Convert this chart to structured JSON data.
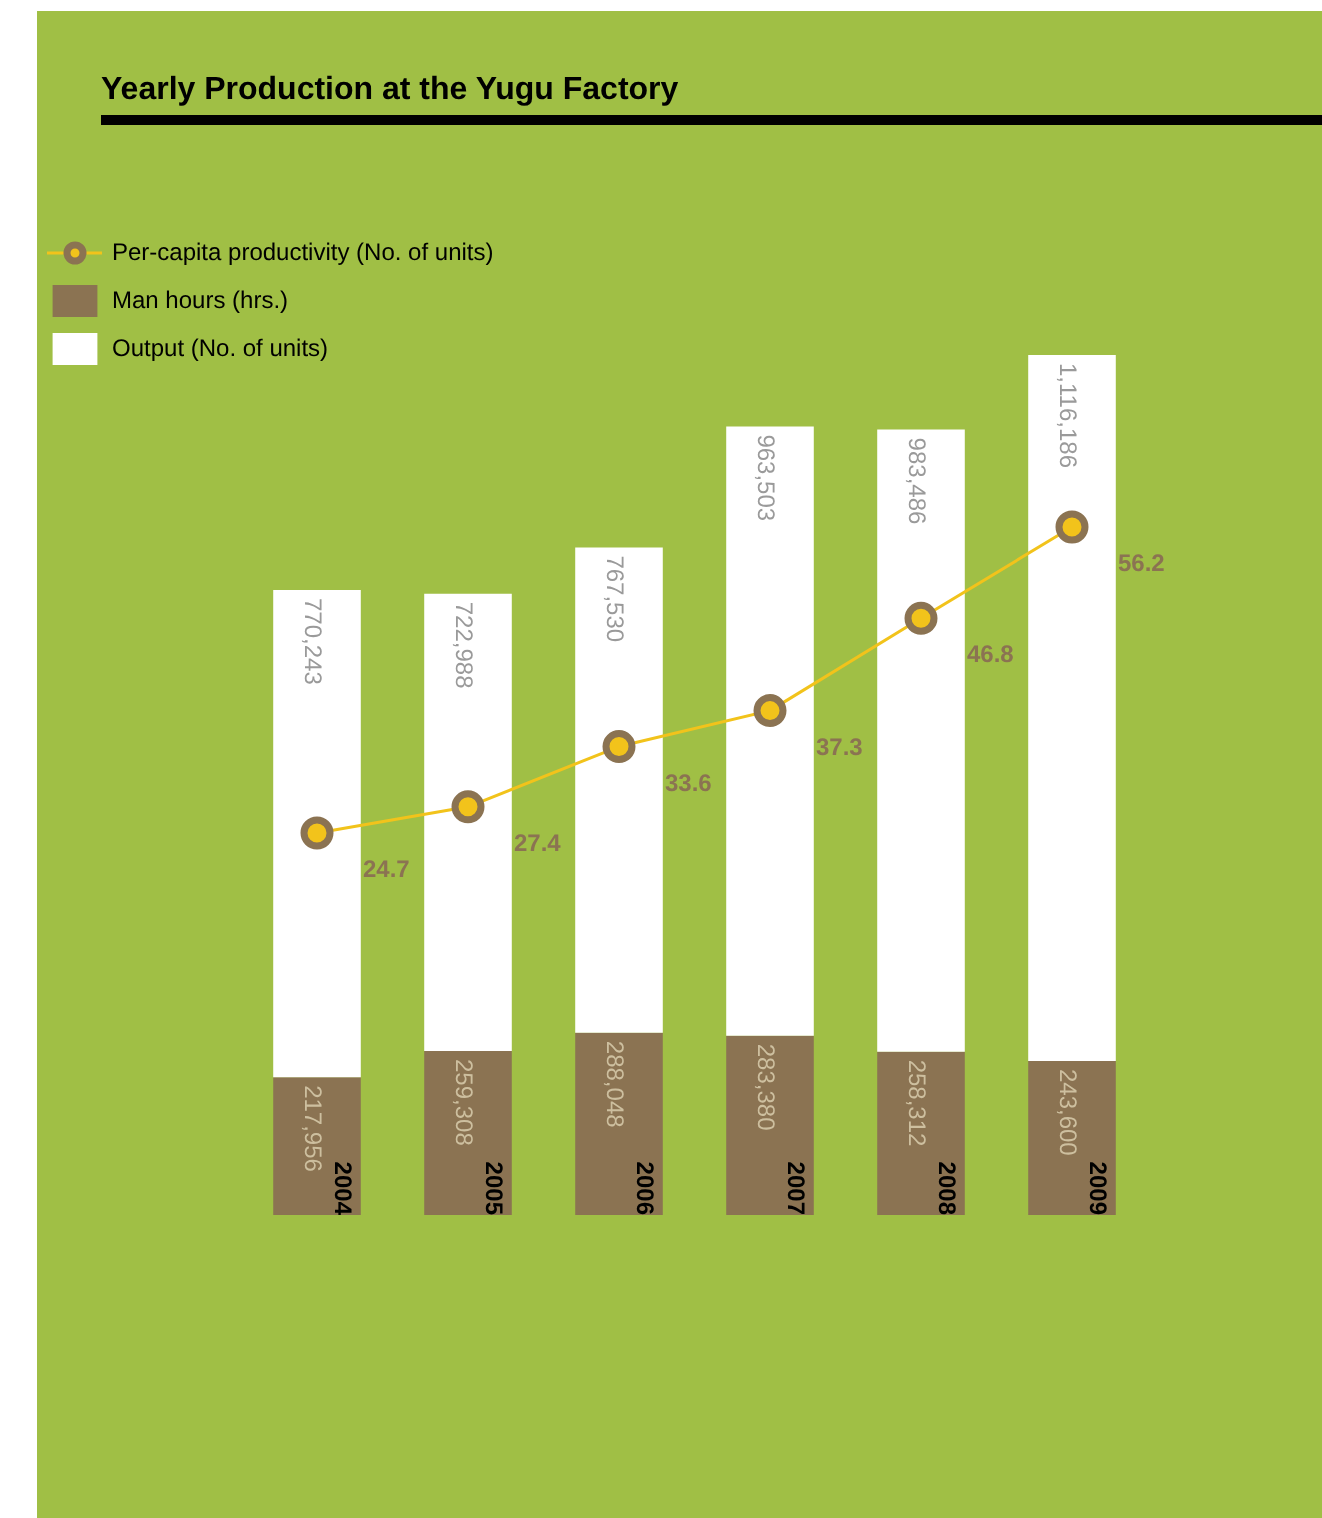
{
  "chart_data": {
    "type": "bar",
    "title": "Yearly Production at the Yugu Factory",
    "categories": [
      "2004",
      "2005",
      "2006",
      "2007",
      "2008",
      "2009"
    ],
    "stacked": true,
    "tick_labels": false,
    "grid": false,
    "legend": "top left",
    "series": [
      {
        "name": "Per-capita productivity (No. of units)",
        "type": "line",
        "axis": "y2",
        "color": "#f2c31b",
        "marker": "circle",
        "line_style": "solid",
        "values": [
          24.7,
          27.4,
          33.6,
          37.3,
          46.8,
          56.2
        ],
        "value_labels": [
          "24.7",
          "27.4",
          "33.6",
          "37.3",
          "46.8",
          "56.2"
        ]
      },
      {
        "name": "Man hours (hrs.)",
        "color": "#8b7352",
        "values": [
          217956,
          259308,
          288048,
          283380,
          258312,
          243600
        ],
        "value_labels": [
          "217,956",
          "259,308",
          "288,048",
          "283,380",
          "258,312",
          "243,600"
        ]
      },
      {
        "name": "Output (No. of units)",
        "color": "#ffffff",
        "values": [
          770243,
          722988,
          767530,
          963503,
          983486,
          1116186
        ],
        "value_labels": [
          "770,243",
          "722,988",
          "767,530",
          "963,503",
          "983,486",
          "1,116,186"
        ]
      }
    ]
  }
}
